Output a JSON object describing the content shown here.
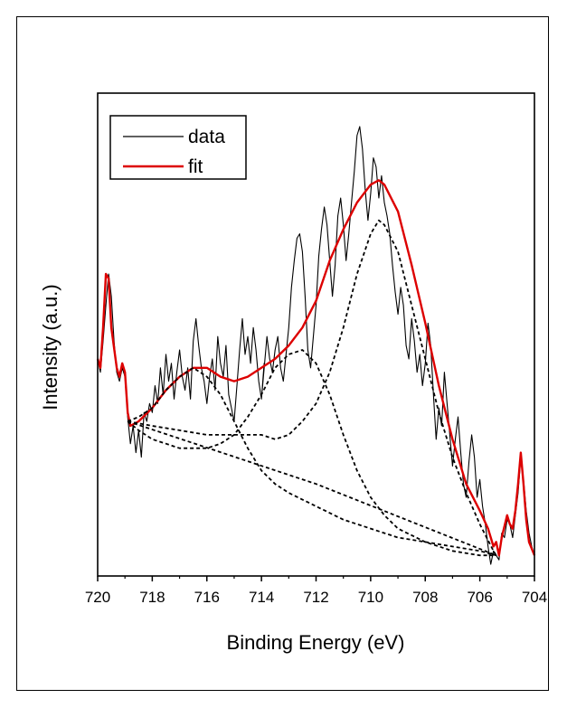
{
  "chart_data": {
    "type": "line",
    "xlabel": "Binding Energy (eV)",
    "ylabel": "Intensity (a.u.)",
    "xlim": [
      720,
      704
    ],
    "x_reversed": true,
    "ylim": [
      0,
      1
    ],
    "x_ticks": [
      "720",
      "718",
      "716",
      "714",
      "712",
      "710",
      "708",
      "706",
      "704"
    ],
    "x_tick_values": [
      720,
      718,
      716,
      714,
      712,
      710,
      708,
      706,
      704
    ],
    "y_ticks_shown": false,
    "legend": {
      "placement": "top-left",
      "entries": [
        {
          "label": "data",
          "color": "#000000"
        },
        {
          "label": "fit",
          "color": "#dd0000"
        }
      ]
    },
    "series": [
      {
        "name": "data",
        "style": "solid-thin",
        "color": "#000000",
        "points": [
          [
            720.0,
            0.48
          ],
          [
            719.9,
            0.45
          ],
          [
            719.8,
            0.52
          ],
          [
            719.7,
            0.6
          ],
          [
            719.6,
            0.67
          ],
          [
            719.5,
            0.62
          ],
          [
            719.4,
            0.52
          ],
          [
            719.3,
            0.45
          ],
          [
            719.2,
            0.43
          ],
          [
            719.1,
            0.46
          ],
          [
            719.0,
            0.44
          ],
          [
            718.9,
            0.35
          ],
          [
            718.8,
            0.29
          ],
          [
            718.7,
            0.33
          ],
          [
            718.6,
            0.27
          ],
          [
            718.5,
            0.32
          ],
          [
            718.4,
            0.26
          ],
          [
            718.3,
            0.36
          ],
          [
            718.2,
            0.34
          ],
          [
            718.1,
            0.38
          ],
          [
            718.0,
            0.36
          ],
          [
            717.9,
            0.42
          ],
          [
            717.8,
            0.38
          ],
          [
            717.7,
            0.46
          ],
          [
            717.6,
            0.4
          ],
          [
            717.5,
            0.49
          ],
          [
            717.4,
            0.43
          ],
          [
            717.3,
            0.47
          ],
          [
            717.2,
            0.39
          ],
          [
            717.1,
            0.45
          ],
          [
            717.0,
            0.5
          ],
          [
            716.9,
            0.44
          ],
          [
            716.8,
            0.41
          ],
          [
            716.7,
            0.46
          ],
          [
            716.6,
            0.39
          ],
          [
            716.5,
            0.52
          ],
          [
            716.4,
            0.57
          ],
          [
            716.3,
            0.51
          ],
          [
            716.2,
            0.46
          ],
          [
            716.1,
            0.43
          ],
          [
            716.0,
            0.38
          ],
          [
            715.9,
            0.44
          ],
          [
            715.8,
            0.48
          ],
          [
            715.7,
            0.41
          ],
          [
            715.6,
            0.53
          ],
          [
            715.5,
            0.47
          ],
          [
            715.4,
            0.44
          ],
          [
            715.3,
            0.51
          ],
          [
            715.2,
            0.4
          ],
          [
            715.1,
            0.37
          ],
          [
            715.0,
            0.34
          ],
          [
            714.9,
            0.42
          ],
          [
            714.8,
            0.5
          ],
          [
            714.7,
            0.57
          ],
          [
            714.6,
            0.49
          ],
          [
            714.5,
            0.53
          ],
          [
            714.4,
            0.47
          ],
          [
            714.3,
            0.55
          ],
          [
            714.2,
            0.5
          ],
          [
            714.1,
            0.43
          ],
          [
            714.0,
            0.39
          ],
          [
            713.9,
            0.47
          ],
          [
            714.0,
            0.39
          ],
          [
            713.8,
            0.53
          ],
          [
            713.7,
            0.48
          ],
          [
            713.6,
            0.45
          ],
          [
            713.5,
            0.5
          ],
          [
            713.4,
            0.53
          ],
          [
            713.3,
            0.46
          ],
          [
            713.2,
            0.43
          ],
          [
            713.1,
            0.49
          ],
          [
            713.0,
            0.55
          ],
          [
            712.9,
            0.64
          ],
          [
            712.8,
            0.7
          ],
          [
            712.7,
            0.75
          ],
          [
            712.6,
            0.76
          ],
          [
            712.5,
            0.72
          ],
          [
            712.4,
            0.62
          ],
          [
            712.3,
            0.5
          ],
          [
            712.2,
            0.46
          ],
          [
            712.1,
            0.53
          ],
          [
            712.0,
            0.6
          ],
          [
            711.9,
            0.71
          ],
          [
            711.8,
            0.77
          ],
          [
            711.7,
            0.82
          ],
          [
            711.6,
            0.78
          ],
          [
            711.5,
            0.7
          ],
          [
            711.4,
            0.62
          ],
          [
            711.3,
            0.69
          ],
          [
            711.2,
            0.8
          ],
          [
            711.1,
            0.84
          ],
          [
            711.0,
            0.78
          ],
          [
            710.9,
            0.7
          ],
          [
            710.8,
            0.76
          ],
          [
            710.7,
            0.83
          ],
          [
            710.6,
            0.9
          ],
          [
            710.5,
            0.98
          ],
          [
            710.4,
            1.0
          ],
          [
            710.3,
            0.95
          ],
          [
            710.2,
            0.86
          ],
          [
            710.1,
            0.79
          ],
          [
            710.0,
            0.85
          ],
          [
            709.9,
            0.93
          ],
          [
            709.8,
            0.91
          ],
          [
            709.7,
            0.84
          ],
          [
            709.6,
            0.89
          ],
          [
            709.5,
            0.83
          ],
          [
            709.4,
            0.8
          ],
          [
            709.3,
            0.76
          ],
          [
            709.2,
            0.69
          ],
          [
            709.1,
            0.63
          ],
          [
            709.0,
            0.58
          ],
          [
            708.9,
            0.64
          ],
          [
            708.8,
            0.6
          ],
          [
            708.7,
            0.51
          ],
          [
            708.6,
            0.48
          ],
          [
            708.5,
            0.57
          ],
          [
            708.4,
            0.52
          ],
          [
            708.3,
            0.45
          ],
          [
            708.2,
            0.49
          ],
          [
            708.1,
            0.42
          ],
          [
            708.0,
            0.47
          ],
          [
            707.9,
            0.56
          ],
          [
            707.8,
            0.51
          ],
          [
            707.7,
            0.4
          ],
          [
            707.6,
            0.3
          ],
          [
            707.5,
            0.37
          ],
          [
            707.4,
            0.33
          ],
          [
            707.3,
            0.45
          ],
          [
            707.2,
            0.38
          ],
          [
            707.1,
            0.31
          ],
          [
            707.0,
            0.24
          ],
          [
            706.9,
            0.3
          ],
          [
            706.8,
            0.35
          ],
          [
            706.7,
            0.27
          ],
          [
            706.6,
            0.2
          ],
          [
            706.5,
            0.17
          ],
          [
            706.4,
            0.25
          ],
          [
            706.3,
            0.31
          ],
          [
            706.2,
            0.26
          ],
          [
            706.1,
            0.17
          ],
          [
            706.0,
            0.21
          ],
          [
            705.9,
            0.15
          ],
          [
            705.8,
            0.11
          ],
          [
            705.7,
            0.06
          ],
          [
            705.6,
            0.02
          ],
          [
            705.5,
            0.05
          ],
          [
            705.4,
            0.04
          ],
          [
            705.3,
            0.03
          ],
          [
            705.2,
            0.09
          ],
          [
            705.1,
            0.08
          ],
          [
            705.0,
            0.12
          ],
          [
            704.9,
            0.11
          ],
          [
            704.8,
            0.08
          ],
          [
            704.7,
            0.13
          ],
          [
            704.6,
            0.18
          ],
          [
            704.5,
            0.26
          ],
          [
            704.4,
            0.21
          ],
          [
            704.3,
            0.14
          ],
          [
            704.2,
            0.09
          ],
          [
            704.1,
            0.06
          ],
          [
            704.0,
            0.04
          ]
        ]
      },
      {
        "name": "fit",
        "style": "solid-thick",
        "color": "#dd0000",
        "points": [
          [
            720.0,
            0.48
          ],
          [
            719.9,
            0.46
          ],
          [
            719.8,
            0.55
          ],
          [
            719.7,
            0.67
          ],
          [
            719.6,
            0.66
          ],
          [
            719.5,
            0.55
          ],
          [
            719.3,
            0.46
          ],
          [
            719.2,
            0.44
          ],
          [
            719.1,
            0.47
          ],
          [
            719.0,
            0.45
          ],
          [
            718.9,
            0.36
          ],
          [
            718.8,
            0.33
          ],
          [
            718.5,
            0.34
          ],
          [
            718.0,
            0.37
          ],
          [
            717.5,
            0.41
          ],
          [
            717.0,
            0.44
          ],
          [
            716.5,
            0.46
          ],
          [
            716.0,
            0.46
          ],
          [
            715.5,
            0.44
          ],
          [
            715.0,
            0.43
          ],
          [
            714.5,
            0.44
          ],
          [
            714.0,
            0.46
          ],
          [
            713.5,
            0.48
          ],
          [
            713.0,
            0.51
          ],
          [
            712.5,
            0.55
          ],
          [
            712.0,
            0.61
          ],
          [
            711.5,
            0.7
          ],
          [
            711.0,
            0.77
          ],
          [
            710.5,
            0.83
          ],
          [
            710.0,
            0.87
          ],
          [
            709.7,
            0.88
          ],
          [
            709.5,
            0.87
          ],
          [
            709.0,
            0.81
          ],
          [
            708.5,
            0.69
          ],
          [
            708.0,
            0.56
          ],
          [
            707.5,
            0.42
          ],
          [
            707.0,
            0.3
          ],
          [
            706.5,
            0.2
          ],
          [
            706.0,
            0.14
          ],
          [
            705.7,
            0.1
          ],
          [
            705.5,
            0.06
          ],
          [
            705.4,
            0.07
          ],
          [
            705.3,
            0.04
          ],
          [
            705.2,
            0.08
          ],
          [
            705.0,
            0.13
          ],
          [
            704.9,
            0.11
          ],
          [
            704.8,
            0.1
          ],
          [
            704.7,
            0.14
          ],
          [
            704.6,
            0.2
          ],
          [
            704.5,
            0.27
          ],
          [
            704.4,
            0.2
          ],
          [
            704.3,
            0.12
          ],
          [
            704.2,
            0.07
          ],
          [
            704.0,
            0.04
          ]
        ]
      },
      {
        "style": "dashed",
        "color": "#000000",
        "points": [
          [
            718.9,
            0.34
          ],
          [
            718.5,
            0.32
          ],
          [
            718.0,
            0.3
          ],
          [
            717.5,
            0.29
          ],
          [
            717.0,
            0.28
          ],
          [
            716.5,
            0.28
          ],
          [
            716.0,
            0.28
          ],
          [
            715.5,
            0.29
          ],
          [
            715.0,
            0.31
          ],
          [
            714.5,
            0.35
          ],
          [
            714.0,
            0.4
          ],
          [
            713.5,
            0.46
          ],
          [
            713.0,
            0.49
          ],
          [
            712.5,
            0.5
          ],
          [
            712.0,
            0.47
          ],
          [
            711.5,
            0.4
          ],
          [
            711.0,
            0.31
          ],
          [
            710.5,
            0.23
          ],
          [
            710.0,
            0.17
          ],
          [
            709.5,
            0.13
          ],
          [
            709.0,
            0.1
          ],
          [
            708.0,
            0.07
          ],
          [
            707.0,
            0.05
          ],
          [
            706.0,
            0.04
          ],
          [
            705.4,
            0.04
          ]
        ]
      },
      {
        "style": "dashed",
        "color": "#000000",
        "points": [
          [
            718.9,
            0.34
          ],
          [
            718.5,
            0.35
          ],
          [
            718.0,
            0.37
          ],
          [
            717.5,
            0.41
          ],
          [
            717.0,
            0.44
          ],
          [
            716.5,
            0.46
          ],
          [
            716.0,
            0.44
          ],
          [
            715.5,
            0.4
          ],
          [
            715.0,
            0.34
          ],
          [
            714.5,
            0.28
          ],
          [
            714.0,
            0.23
          ],
          [
            713.5,
            0.2
          ],
          [
            713.0,
            0.18
          ],
          [
            712.0,
            0.15
          ],
          [
            711.0,
            0.12
          ],
          [
            710.0,
            0.1
          ],
          [
            709.0,
            0.08
          ],
          [
            708.0,
            0.07
          ],
          [
            707.0,
            0.06
          ],
          [
            706.0,
            0.05
          ],
          [
            705.4,
            0.04
          ]
        ]
      },
      {
        "style": "dashed",
        "color": "#000000",
        "points": [
          [
            718.9,
            0.34
          ],
          [
            718.0,
            0.33
          ],
          [
            717.0,
            0.32
          ],
          [
            716.0,
            0.31
          ],
          [
            715.0,
            0.31
          ],
          [
            714.0,
            0.31
          ],
          [
            713.5,
            0.3
          ],
          [
            713.0,
            0.31
          ],
          [
            712.5,
            0.34
          ],
          [
            712.0,
            0.38
          ],
          [
            711.5,
            0.45
          ],
          [
            711.0,
            0.55
          ],
          [
            710.5,
            0.67
          ],
          [
            710.0,
            0.76
          ],
          [
            709.7,
            0.79
          ],
          [
            709.5,
            0.78
          ],
          [
            709.0,
            0.72
          ],
          [
            708.5,
            0.6
          ],
          [
            708.0,
            0.48
          ],
          [
            707.5,
            0.36
          ],
          [
            707.0,
            0.26
          ],
          [
            706.5,
            0.18
          ],
          [
            706.0,
            0.11
          ],
          [
            705.5,
            0.05
          ],
          [
            705.4,
            0.04
          ]
        ]
      },
      {
        "style": "dashed",
        "color": "#000000",
        "points": [
          [
            718.9,
            0.34
          ],
          [
            712.0,
            0.2
          ],
          [
            705.4,
            0.04
          ]
        ]
      }
    ]
  }
}
